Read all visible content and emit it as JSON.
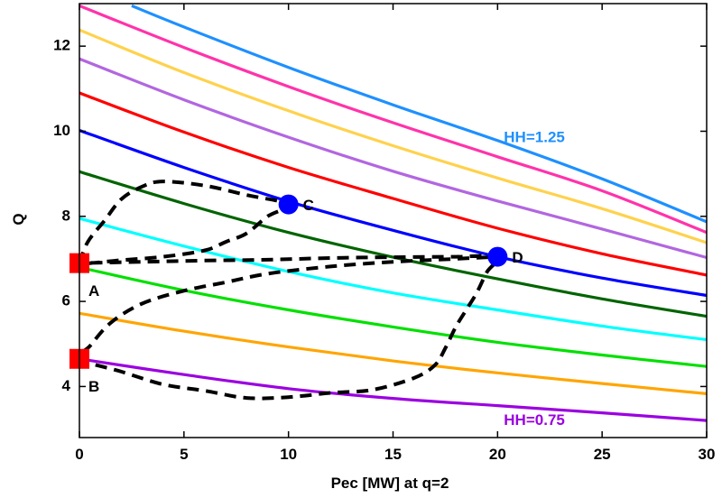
{
  "chart_data": {
    "type": "line",
    "xlabel": "Pec [MW] at q=2",
    "ylabel": "Q",
    "xlim": [
      0,
      30
    ],
    "ylim": [
      2.8,
      13
    ],
    "xticks": [
      0,
      5,
      10,
      15,
      20,
      25,
      30
    ],
    "yticks": [
      4,
      6,
      8,
      10,
      12
    ],
    "grid": false,
    "series": [
      {
        "color": "#9b00e0",
        "values": [
          [
            0,
            4.65
          ],
          [
            5,
            4.28
          ],
          [
            10,
            3.95
          ],
          [
            15,
            3.72
          ],
          [
            20,
            3.55
          ],
          [
            25,
            3.38
          ],
          [
            30,
            3.2
          ]
        ]
      },
      {
        "color": "#ffa500",
        "values": [
          [
            0,
            5.72
          ],
          [
            5,
            5.3
          ],
          [
            10,
            4.93
          ],
          [
            15,
            4.6
          ],
          [
            20,
            4.32
          ],
          [
            25,
            4.07
          ],
          [
            30,
            3.83
          ]
        ]
      },
      {
        "color": "#00e000",
        "values": [
          [
            0,
            6.8
          ],
          [
            5,
            6.26
          ],
          [
            10,
            5.8
          ],
          [
            15,
            5.4
          ],
          [
            20,
            5.04
          ],
          [
            25,
            4.74
          ],
          [
            30,
            4.47
          ]
        ]
      },
      {
        "color": "#00ffff",
        "values": [
          [
            0,
            7.95
          ],
          [
            5,
            7.3
          ],
          [
            10,
            6.7
          ],
          [
            15,
            6.2
          ],
          [
            20,
            5.8
          ],
          [
            25,
            5.42
          ],
          [
            30,
            5.1
          ]
        ]
      },
      {
        "color": "#006400",
        "values": [
          [
            0,
            9.05
          ],
          [
            5,
            8.3
          ],
          [
            10,
            7.62
          ],
          [
            15,
            7.04
          ],
          [
            20,
            6.53
          ],
          [
            25,
            6.06
          ],
          [
            30,
            5.65
          ]
        ]
      },
      {
        "color": "#0000ff",
        "values": [
          [
            0,
            10.02
          ],
          [
            5,
            9.15
          ],
          [
            10,
            8.35
          ],
          [
            15,
            7.67
          ],
          [
            20,
            7.05
          ],
          [
            25,
            6.55
          ],
          [
            30,
            6.14
          ]
        ]
      },
      {
        "color": "#ff0000",
        "values": [
          [
            0,
            10.9
          ],
          [
            5,
            9.98
          ],
          [
            10,
            9.15
          ],
          [
            15,
            8.42
          ],
          [
            20,
            7.72
          ],
          [
            25,
            7.12
          ],
          [
            30,
            6.62
          ]
        ]
      },
      {
        "color": "#b266e0",
        "values": [
          [
            0,
            11.7
          ],
          [
            5,
            10.74
          ],
          [
            10,
            9.86
          ],
          [
            15,
            9.06
          ],
          [
            20,
            8.36
          ],
          [
            25,
            7.7
          ],
          [
            30,
            7.03
          ]
        ]
      },
      {
        "color": "#ffd24d",
        "values": [
          [
            0,
            12.38
          ],
          [
            5,
            11.38
          ],
          [
            10,
            10.48
          ],
          [
            15,
            9.66
          ],
          [
            20,
            8.9
          ],
          [
            25,
            8.18
          ],
          [
            30,
            7.38
          ]
        ]
      },
      {
        "color": "#ff33aa",
        "values": [
          [
            0,
            12.95
          ],
          [
            5,
            11.97
          ],
          [
            10,
            11.05
          ],
          [
            15,
            10.2
          ],
          [
            20,
            9.4
          ],
          [
            25,
            8.6
          ],
          [
            30,
            7.62
          ]
        ]
      },
      {
        "color": "#1e90ff",
        "values": [
          [
            2.5,
            12.95
          ],
          [
            5,
            12.45
          ],
          [
            10,
            11.5
          ],
          [
            15,
            10.62
          ],
          [
            20,
            9.78
          ],
          [
            25,
            8.88
          ],
          [
            30,
            7.87
          ]
        ]
      }
    ],
    "path": {
      "color": "#000000",
      "style": "dashed",
      "points": [
        [
          0,
          6.9
        ],
        [
          0.4,
          7.4
        ],
        [
          1.2,
          7.9
        ],
        [
          2,
          8.4
        ],
        [
          3,
          8.7
        ],
        [
          4,
          8.82
        ],
        [
          6,
          8.72
        ],
        [
          8,
          8.5
        ],
        [
          10,
          8.28
        ],
        [
          9,
          8.0
        ],
        [
          8,
          7.6
        ],
        [
          7,
          7.4
        ],
        [
          6,
          7.2
        ],
        [
          4,
          7.05
        ],
        [
          2,
          6.97
        ],
        [
          0.5,
          6.9
        ],
        [
          0,
          6.9
        ],
        [
          3,
          6.93
        ],
        [
          6,
          6.96
        ],
        [
          9,
          6.98
        ],
        [
          12,
          7.02
        ],
        [
          15,
          7.04
        ],
        [
          18,
          7.05
        ],
        [
          20,
          7.05
        ],
        [
          19.5,
          6.7
        ],
        [
          19,
          6.2
        ],
        [
          18.5,
          5.8
        ],
        [
          18,
          5.4
        ],
        [
          17.5,
          4.9
        ],
        [
          17,
          4.5
        ],
        [
          16,
          4.2
        ],
        [
          14,
          3.92
        ],
        [
          12,
          3.85
        ],
        [
          10,
          3.75
        ],
        [
          8,
          3.73
        ],
        [
          6,
          3.9
        ],
        [
          4,
          4.05
        ],
        [
          2,
          4.35
        ],
        [
          0,
          4.65
        ],
        [
          0.5,
          4.95
        ],
        [
          1.5,
          5.5
        ],
        [
          3,
          5.95
        ],
        [
          5,
          6.25
        ],
        [
          7,
          6.45
        ],
        [
          9,
          6.65
        ],
        [
          12,
          6.82
        ],
        [
          15,
          6.93
        ],
        [
          18,
          7.0
        ],
        [
          20,
          7.05
        ]
      ]
    },
    "points": [
      {
        "label": "A",
        "x": 0,
        "y": 6.9,
        "marker": "square",
        "color": "#ff0000"
      },
      {
        "label": "B",
        "x": 0,
        "y": 4.65,
        "marker": "square",
        "color": "#ff0000"
      },
      {
        "label": "C",
        "x": 10,
        "y": 8.28,
        "marker": "circle",
        "color": "#0000ff"
      },
      {
        "label": "D",
        "x": 20,
        "y": 7.05,
        "marker": "circle",
        "color": "#0000ff"
      }
    ],
    "annotations": [
      {
        "text": "HH=1.25",
        "x": 20.3,
        "y": 9.75,
        "color": "#1e90ff"
      },
      {
        "text": "HH=0.75",
        "x": 20.3,
        "y": 3.1,
        "color": "#9b00e0"
      }
    ]
  }
}
